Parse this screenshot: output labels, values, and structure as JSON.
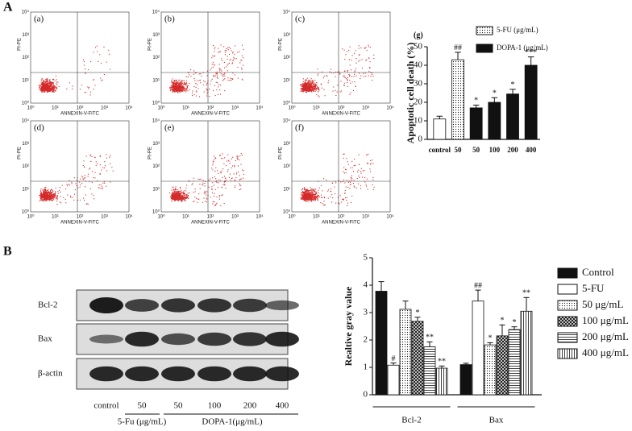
{
  "panel_labels": [
    "A",
    "B"
  ],
  "flow": {
    "x_label": "ANNEXIN-V-FITC",
    "y_label": "PI-PE",
    "tick_labels": [
      "10⁰",
      "10¹",
      "10²",
      "10³",
      "10⁴"
    ],
    "panels": [
      "(a)",
      "(b)",
      "(c)",
      "(d)",
      "(e)",
      "(f)"
    ]
  },
  "blot": {
    "rows": [
      "Bcl-2",
      "Bax",
      "β-actin"
    ],
    "lanes": [
      "control",
      "50",
      "50",
      "100",
      "200",
      "400"
    ],
    "groups": [
      "5-Fu (μg/mL)",
      "DOPA-1(μg/mL)"
    ]
  },
  "chart_data": [
    {
      "type": "bar",
      "title": "(g)",
      "ylabel": "Apoptotic cell death (%)",
      "categories": [
        "control",
        "50",
        "50",
        "100",
        "200",
        "400"
      ],
      "values": [
        11,
        43,
        17,
        20,
        24.5,
        40
      ],
      "errors": [
        1.5,
        4,
        1.5,
        2.5,
        2.5,
        4.5
      ],
      "annotations": [
        null,
        "##",
        "*",
        "*",
        "*",
        "***"
      ],
      "bar_fills": [
        "white",
        "dots",
        "#111",
        "#111",
        "#111",
        "#111"
      ],
      "legend": [
        {
          "name": "5-FU (μg/mL)",
          "fill": "dots"
        },
        {
          "name": "DOPA-1 (μg/mL)",
          "fill": "#111"
        }
      ],
      "ylim": [
        0,
        50
      ],
      "yticks": [
        0,
        10,
        20,
        30,
        40,
        50
      ]
    },
    {
      "type": "grouped_bar",
      "ylabel": "Realtive gray value",
      "categories": [
        "Bcl-2",
        "Bax"
      ],
      "series": [
        {
          "name": "Control",
          "color": "#111",
          "values": [
            3.78,
            1.1
          ],
          "errors": [
            0.35,
            0.05
          ],
          "annotations": [
            null,
            null
          ]
        },
        {
          "name": "5-FU",
          "color": "white",
          "values": [
            1.08,
            3.42
          ],
          "errors": [
            0.08,
            0.4
          ],
          "annotations": [
            "#",
            "##"
          ]
        },
        {
          "name": "50 μg/mL",
          "color": "dots",
          "values": [
            3.12,
            1.82
          ],
          "errors": [
            0.3,
            0.08
          ],
          "annotations": [
            null,
            "*"
          ]
        },
        {
          "name": "100 μg/mL",
          "color": "cross",
          "values": [
            2.68,
            2.15
          ],
          "errors": [
            0.15,
            0.4
          ],
          "annotations": [
            "*",
            "*"
          ]
        },
        {
          "name": "200 μg/mL",
          "color": "hlines",
          "values": [
            1.75,
            2.38
          ],
          "errors": [
            0.18,
            0.1
          ],
          "annotations": [
            "**",
            "*"
          ]
        },
        {
          "name": "400 μg/mL",
          "color": "vlines",
          "values": [
            0.97,
            3.05
          ],
          "errors": [
            0.08,
            0.5
          ],
          "annotations": [
            "**",
            "**"
          ]
        }
      ],
      "ylim": [
        0,
        5
      ],
      "yticks": [
        0,
        1,
        2,
        3,
        4,
        5
      ]
    }
  ]
}
